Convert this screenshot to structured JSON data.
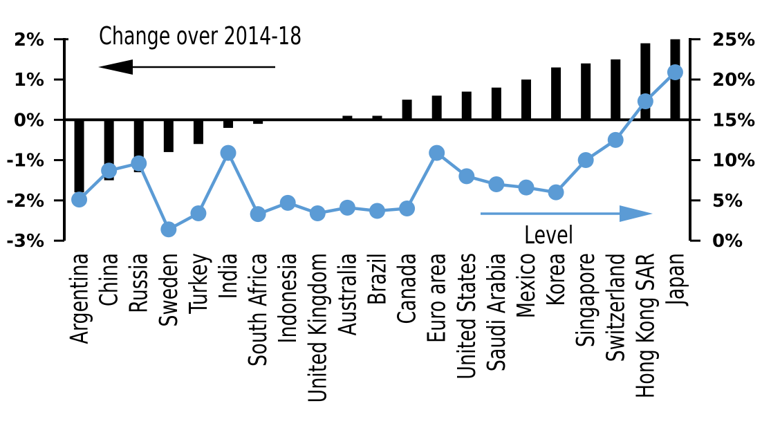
{
  "chart_data": {
    "type": "combo-bar-line",
    "categories": [
      "Argentina",
      "China",
      "Russia",
      "Sweden",
      "Turkey",
      "India",
      "South Africa",
      "Indonesia",
      "United Kingdom",
      "Australia",
      "Brazil",
      "Canada",
      "Euro area",
      "United States",
      "Saudi Arabia",
      "Mexico",
      "Korea",
      "Singapore",
      "Switzerland",
      "Hong Kong SAR",
      "Japan"
    ],
    "series": [
      {
        "name": "Change over 2014-18",
        "type": "bar",
        "axis": "left",
        "color": "#000000",
        "values": [
          -1.8,
          -1.5,
          -1.3,
          -0.8,
          -0.6,
          -0.2,
          -0.1,
          0,
          0,
          0.1,
          0.1,
          0.5,
          0.6,
          0.7,
          0.8,
          1.0,
          1.3,
          1.4,
          1.5,
          1.9,
          2.0
        ]
      },
      {
        "name": "Level",
        "type": "line",
        "axis": "right",
        "color": "#5B9BD5",
        "values": [
          5.1,
          8.7,
          9.6,
          1.4,
          3.4,
          10.9,
          3.3,
          4.7,
          3.4,
          4.1,
          3.7,
          4.0,
          10.9,
          8.0,
          7.0,
          6.6,
          6.0,
          10.0,
          12.5,
          17.3,
          20.9
        ]
      }
    ],
    "left_axis": {
      "ticks": [
        "2%",
        "1%",
        "0%",
        "-1%",
        "-2%",
        "-3%"
      ],
      "tick_values": [
        2,
        1,
        0,
        -1,
        -2,
        -3
      ],
      "min": -3,
      "max": 2
    },
    "right_axis": {
      "ticks": [
        "25%",
        "20%",
        "15%",
        "10%",
        "5%",
        "0%"
      ],
      "tick_values": [
        25,
        20,
        15,
        10,
        5,
        0
      ],
      "min": 0,
      "max": 25
    },
    "annotations": [
      {
        "text": "Change over 2014-18",
        "arrow": "left",
        "color": "#000000"
      },
      {
        "text": "Level",
        "arrow": "right",
        "color": "#5B9BD5"
      }
    ],
    "grid": false,
    "legend_position": "none"
  }
}
